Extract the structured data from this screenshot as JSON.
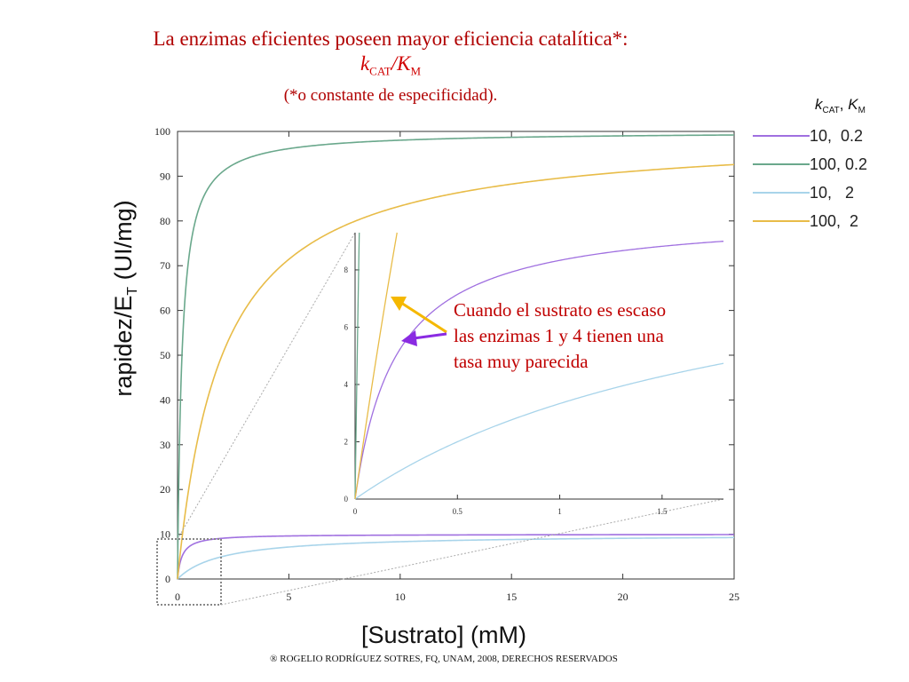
{
  "title": {
    "line1": "La enzimas eficientes poseen mayor eficiencia catalítica*:",
    "k": "k",
    "cat_sub": "CAT",
    "slash": "/",
    "K": "K",
    "m_sub": "M",
    "line3": "(*o constante de especificidad)."
  },
  "footer": "® ROGELIO RODRÍGUEZ SOTRES, FQ, UNAM, 2008, DERECHOS RESERVADOS",
  "annotation": [
    "Cuando el sustrato es escaso",
    "las enzimas 1 y 4 tienen una",
    "tasa muy parecida"
  ],
  "chart_data": {
    "type": "line",
    "model": "rapidez/ET = kcat*[S]/(KM+[S])",
    "xlabel": "[Sustrato] (mM)",
    "ylabel": "rapidez/E",
    "ylabel_sub": "T",
    "ylabel_units": " (UI/mg)",
    "xlim": [
      0,
      25
    ],
    "ylim": [
      0,
      100
    ],
    "xticks": [
      0,
      5,
      10,
      15,
      20,
      25
    ],
    "yticks": [
      0,
      10,
      20,
      30,
      40,
      50,
      60,
      70,
      80,
      90,
      100
    ],
    "legend": {
      "title_k": "k",
      "title_k_sub": "CAT",
      "title_sep": ", ",
      "title_K": "K",
      "title_K_sub": "M",
      "placement": "right"
    },
    "series": [
      {
        "name": "10,  0.2",
        "kcat": 10,
        "km": 0.2,
        "color": "#a070e0"
      },
      {
        "name": "100, 0.2",
        "kcat": 100,
        "km": 0.2,
        "color": "#6aa88c"
      },
      {
        "name": "10,   2",
        "kcat": 10,
        "km": 2,
        "color": "#a8d4ea"
      },
      {
        "name": "100,  2",
        "kcat": 100,
        "km": 2,
        "color": "#e8bc48"
      }
    ],
    "inset": {
      "xlim": [
        0,
        1.8
      ],
      "ylim": [
        0,
        9.3
      ],
      "xticks": [
        0,
        0.5,
        1,
        1.5
      ],
      "xtick_labels": [
        "0",
        "0.5",
        "1",
        "1.5"
      ],
      "yticks": [
        0,
        2,
        4,
        6,
        8
      ],
      "zoom_region": {
        "x": [
          0,
          2
        ],
        "y": [
          -0.5,
          9
        ]
      }
    },
    "arrows": [
      {
        "color": "#f5b800",
        "target_series": "100,  2"
      },
      {
        "color": "#8a2be2",
        "target_series": "10,  0.2"
      }
    ]
  }
}
